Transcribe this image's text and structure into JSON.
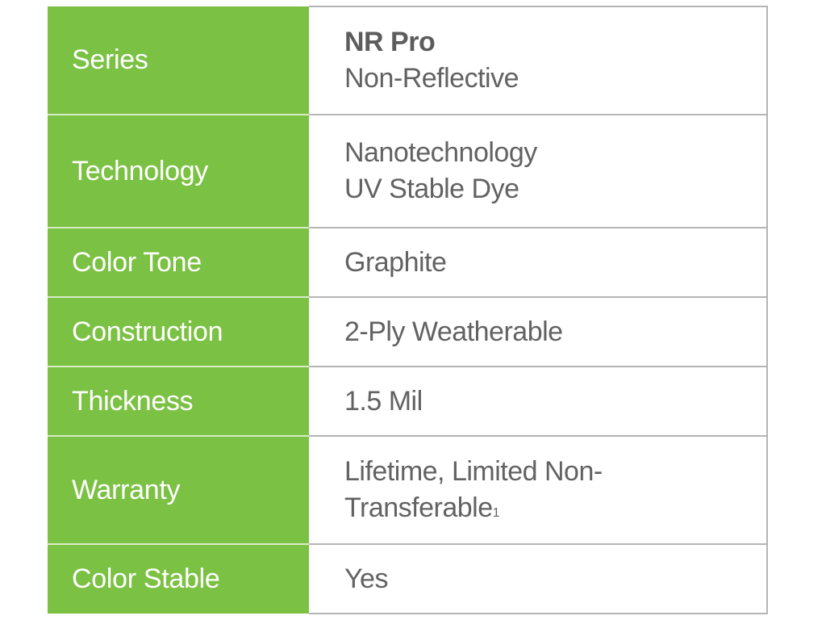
{
  "colors": {
    "label_bg": "#7bc143",
    "label_text": "#ffffff",
    "value_text": "#626262"
  },
  "rows": [
    {
      "label": "Series",
      "value_title": "NR Pro",
      "value": "Non-Reflective"
    },
    {
      "label": "Technology",
      "value": "Nanotechnology",
      "value2": "UV Stable Dye"
    },
    {
      "label": "Color Tone",
      "value": "Graphite"
    },
    {
      "label": "Construction",
      "value": "2-Ply Weatherable"
    },
    {
      "label": "Thickness",
      "value": "1.5 Mil"
    },
    {
      "label": "Warranty",
      "value": "Lifetime, Limited Non-",
      "value2": "Transferable",
      "footnote": "1"
    },
    {
      "label": "Color Stable",
      "value": "Yes"
    }
  ]
}
